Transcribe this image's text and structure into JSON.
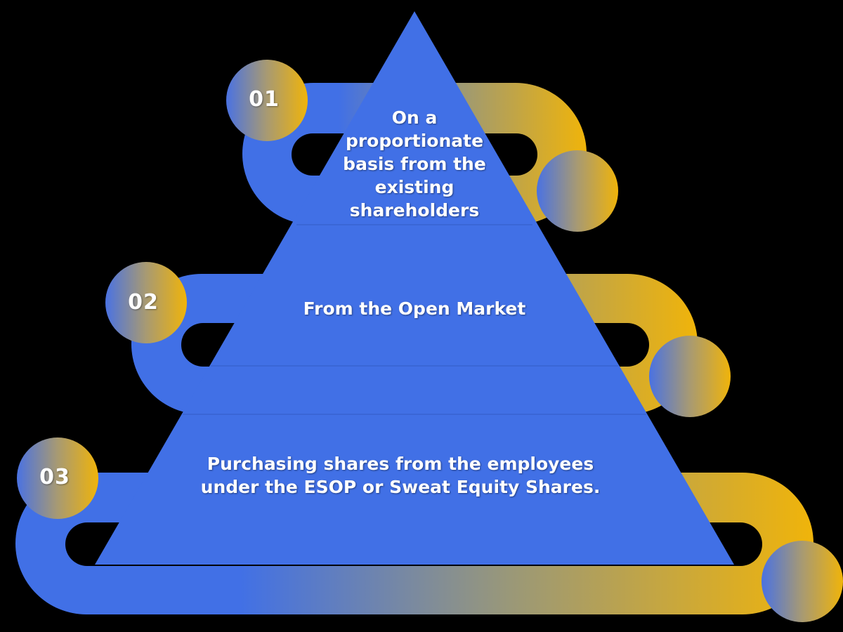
{
  "colors": {
    "background": "#000000",
    "blue": "#4170e6",
    "gold": "#f0b40a",
    "text": "#ffffff"
  },
  "tiers": [
    {
      "number": "01",
      "text": "On a proportionate basis from the existing shareholders"
    },
    {
      "number": "02",
      "text": "From the Open Market"
    },
    {
      "number": "03",
      "text": "Purchasing shares from the employees under the ESOP or Sweat Equity Shares."
    }
  ]
}
